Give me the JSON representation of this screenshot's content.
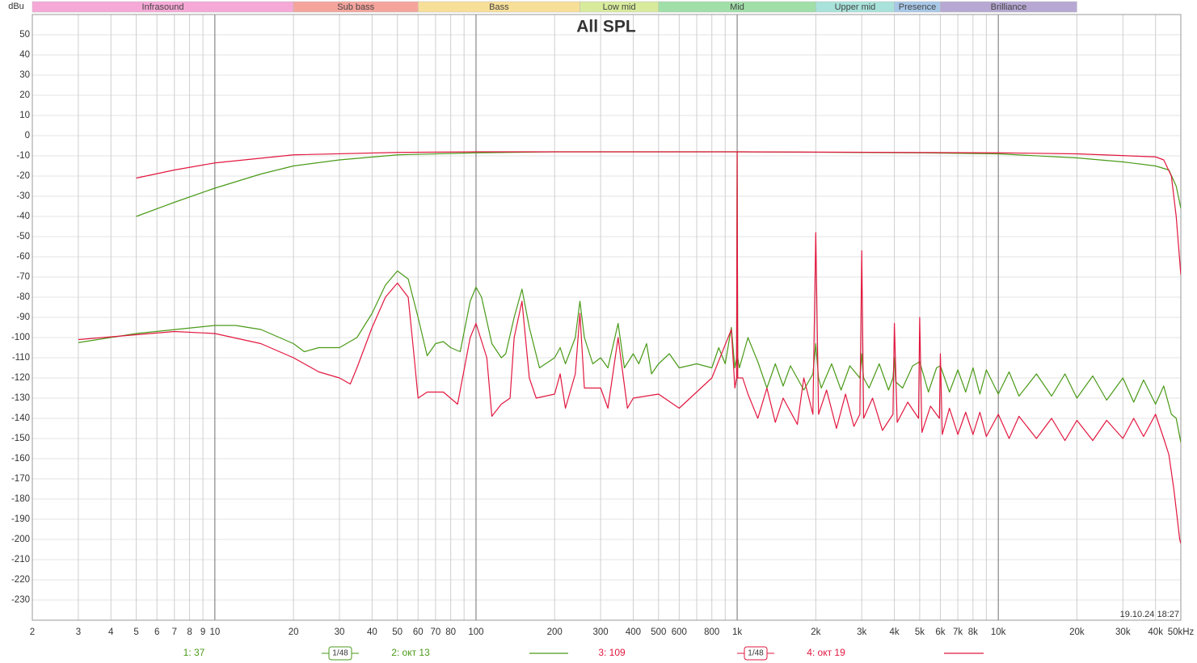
{
  "chart_data": {
    "type": "line",
    "title": "All SPL",
    "y_label": "dBu",
    "timestamp": "19.10.24 18:27",
    "log_x": true,
    "grid": true,
    "xlim": [
      2,
      50000
    ],
    "ylim": [
      -240,
      60
    ],
    "xticks": [
      2,
      3,
      4,
      5,
      6,
      7,
      8,
      9,
      10,
      20,
      30,
      40,
      50,
      60,
      70,
      80,
      100,
      200,
      300,
      400,
      500,
      600,
      800,
      {
        "value": 1000,
        "label": "1k"
      },
      {
        "value": 2000,
        "label": "2k"
      },
      {
        "value": 3000,
        "label": "3k"
      },
      {
        "value": 4000,
        "label": "4k"
      },
      {
        "value": 5000,
        "label": "5k"
      },
      {
        "value": 6000,
        "label": "6k"
      },
      {
        "value": 7000,
        "label": "7k"
      },
      {
        "value": 8000,
        "label": "8k"
      },
      {
        "value": 10000,
        "label": "10k"
      },
      {
        "value": 20000,
        "label": "20k"
      },
      {
        "value": 30000,
        "label": "30k"
      },
      {
        "value": 40000,
        "label": "40k"
      },
      {
        "value": 50000,
        "label": "50kHz"
      }
    ],
    "x_minor_grid": [
      90,
      700,
      900,
      9000
    ],
    "yticks": [
      50,
      40,
      30,
      20,
      10,
      0,
      -10,
      -20,
      -30,
      -40,
      -50,
      -60,
      -70,
      -80,
      -90,
      -100,
      -110,
      -120,
      -130,
      -140,
      -150,
      -160,
      -170,
      -180,
      -190,
      -200,
      -210,
      -220,
      -230
    ],
    "bands": [
      {
        "name": "Infrasound",
        "range": [
          2,
          20
        ],
        "color": "#f6a8d6"
      },
      {
        "name": "Sub bass",
        "range": [
          20,
          60
        ],
        "color": "#f5a49c"
      },
      {
        "name": "Bass",
        "range": [
          60,
          250
        ],
        "color": "#f8df98"
      },
      {
        "name": "Low mid",
        "range": [
          250,
          500
        ],
        "color": "#d8eb9c"
      },
      {
        "name": "Mid",
        "range": [
          500,
          2000
        ],
        "color": "#a0dfa8"
      },
      {
        "name": "Upper mid",
        "range": [
          2000,
          4000
        ],
        "color": "#a8e2da"
      },
      {
        "name": "Presence",
        "range": [
          4000,
          6000
        ],
        "color": "#a8c8e8"
      },
      {
        "name": "Brilliance",
        "range": [
          6000,
          20000
        ],
        "color": "#b6a8d2"
      }
    ],
    "series": [
      {
        "name": "1: 37",
        "smoothing": "1/48",
        "color": "#4a9a18",
        "x": [
          3,
          5,
          10,
          12,
          15,
          20,
          22,
          25,
          30,
          35,
          40,
          45,
          50,
          55,
          60,
          65,
          70,
          75,
          80,
          87,
          95,
          100,
          105,
          115,
          125,
          130,
          140,
          150,
          160,
          175,
          200,
          210,
          220,
          240,
          250,
          260,
          280,
          300,
          320,
          350,
          370,
          400,
          420,
          450,
          470,
          500,
          550,
          600,
          700,
          800,
          850,
          900,
          950,
          980,
          995,
          1000,
          1005,
          1020,
          1100,
          1200,
          1300,
          1400,
          1500,
          1600,
          1800,
          1950,
          2000,
          2050,
          2100,
          2300,
          2500,
          2700,
          2950,
          3000,
          3050,
          3200,
          3500,
          3800,
          3950,
          4000,
          4050,
          4300,
          4700,
          5000,
          5400,
          5800,
          6000,
          6500,
          7000,
          7500,
          8000,
          8500,
          9000,
          10000,
          11000,
          12000,
          14000,
          16000,
          18000,
          20000,
          23000,
          26000,
          30000,
          33000,
          36000,
          40000,
          43000,
          46000,
          48000,
          50000
        ],
        "values": [
          -102.5,
          -98,
          -94,
          -94,
          -96,
          -103,
          -107,
          -105,
          -105,
          -100,
          -88,
          -74,
          -67,
          -71,
          -90,
          -109,
          -103,
          -102,
          -105,
          -107,
          -82,
          -75,
          -80,
          -103,
          -110,
          -108,
          -90,
          -76,
          -95,
          -115,
          -110,
          -105,
          -113,
          -100,
          -82,
          -100,
          -113,
          -110,
          -115,
          -93,
          -115,
          -108,
          -113,
          -103,
          -118,
          -113,
          -108,
          -115,
          -113,
          -115,
          -105,
          -113,
          -95,
          -115,
          -110,
          -8,
          -110,
          -115,
          -100,
          -112,
          -125,
          -113,
          -124,
          -114,
          -126,
          -118,
          -103,
          -120,
          -125,
          -113,
          -126,
          -114,
          -120,
          -108,
          -120,
          -125,
          -113,
          -126,
          -120,
          -110,
          -122,
          -125,
          -114,
          -112,
          -127,
          -115,
          -114,
          -127,
          -116,
          -127,
          -115,
          -128,
          -116,
          -128,
          -117,
          -129,
          -118,
          -129,
          -118,
          -130,
          -119,
          -131,
          -120,
          -132,
          -121,
          -133,
          -124,
          -138,
          -140,
          -152
        ]
      },
      {
        "name": "2: окт 13",
        "color": "#4a9a18",
        "x": [
          5,
          7,
          10,
          15,
          20,
          30,
          50,
          100,
          200,
          1000,
          5000,
          10000,
          20000,
          30000,
          40000,
          45000,
          48000,
          50000
        ],
        "values": [
          -40,
          -33,
          -26,
          -19,
          -15,
          -12,
          -9.5,
          -8.5,
          -8,
          -8,
          -8.5,
          -9,
          -11,
          -13,
          -15,
          -17,
          -25,
          -36
        ]
      },
      {
        "name": "3: 109",
        "smoothing": "1/48",
        "color": "#e2173f",
        "x": [
          3,
          7,
          10,
          15,
          20,
          25,
          30,
          33,
          35,
          40,
          45,
          50,
          55,
          58,
          60,
          65,
          75,
          85,
          95,
          100,
          110,
          115,
          125,
          135,
          140,
          150,
          160,
          170,
          200,
          210,
          220,
          240,
          250,
          260,
          300,
          320,
          350,
          380,
          400,
          500,
          600,
          800,
          950,
          980,
          995,
          1000,
          1005,
          1050,
          1100,
          1200,
          1300,
          1400,
          1500,
          1700,
          1800,
          1950,
          2000,
          2050,
          2200,
          2400,
          2600,
          2800,
          2950,
          3000,
          3050,
          3300,
          3600,
          3950,
          4000,
          4100,
          4500,
          4950,
          5000,
          5100,
          5500,
          5950,
          6000,
          6100,
          6500,
          7000,
          7500,
          8000,
          8500,
          9000,
          10000,
          11000,
          12000,
          14000,
          16000,
          18000,
          20000,
          23000,
          26000,
          30000,
          33000,
          36000,
          40000,
          43000,
          45000,
          47000,
          48500,
          49500,
          50000
        ],
        "values": [
          -101,
          -97,
          -98,
          -103,
          -110,
          -117,
          -120,
          -123,
          -115,
          -95,
          -80,
          -73,
          -80,
          -110,
          -130,
          -127,
          -127,
          -133,
          -100,
          -93,
          -110,
          -139,
          -133,
          -130,
          -100,
          -82,
          -120,
          -130,
          -128,
          -118,
          -135,
          -118,
          -88,
          -125,
          -125,
          -135,
          -100,
          -135,
          -130,
          -128,
          -135,
          -120,
          -96,
          -125,
          -120,
          -8,
          -120,
          -120,
          -128,
          -140,
          -125,
          -142,
          -130,
          -143,
          -120,
          -138,
          -48,
          -138,
          -126,
          -145,
          -128,
          -144,
          -138,
          -57,
          -140,
          -130,
          -146,
          -138,
          -93,
          -142,
          -132,
          -140,
          -90,
          -147,
          -134,
          -140,
          -108,
          -148,
          -135,
          -148,
          -137,
          -148,
          -137,
          -149,
          -138,
          -150,
          -139,
          -150,
          -140,
          -151,
          -141,
          -151,
          -141,
          -150,
          -140,
          -149,
          -138,
          -150,
          -158,
          -175,
          -190,
          -200,
          -202
        ]
      },
      {
        "name": "4: окт 19",
        "color": "#e2173f",
        "x": [
          5,
          7,
          10,
          20,
          50,
          100,
          1000,
          10000,
          20000,
          40000,
          43000,
          46000,
          48000,
          50000
        ],
        "values": [
          -21,
          -17,
          -13.5,
          -9.5,
          -8.3,
          -8,
          -8,
          -8.5,
          -9,
          -10.5,
          -12,
          -20,
          -40,
          -69
        ]
      }
    ]
  }
}
